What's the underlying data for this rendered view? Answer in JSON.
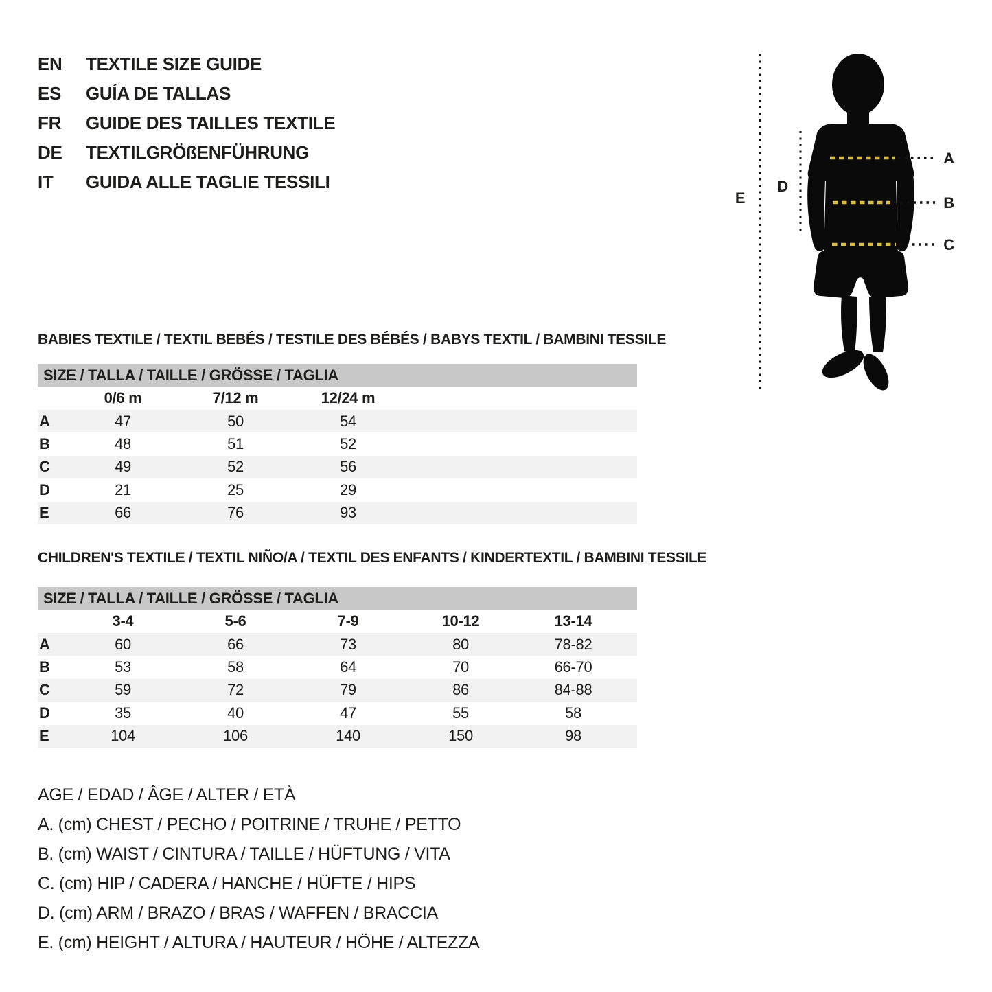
{
  "page": {
    "background": "#ffffff",
    "text_color": "#1d1d1b"
  },
  "language_guide": {
    "items": [
      {
        "code": "EN",
        "label": "TEXTILE SIZE GUIDE"
      },
      {
        "code": "ES",
        "label": "GUÍA DE TALLAS"
      },
      {
        "code": "FR",
        "label": "GUIDE DES TAILLES TEXTILE"
      },
      {
        "code": "DE",
        "label": "TEXTILGRÖßENFÜHRUNG"
      },
      {
        "code": "IT",
        "label": "GUIDA ALLE TAGLIE TESSILI"
      }
    ]
  },
  "figure": {
    "measure_labels": {
      "a": "A",
      "b": "B",
      "c": "C",
      "d": "D",
      "e": "E"
    },
    "colors": {
      "silhouette": "#0a0a0a",
      "dash_black": "#111111",
      "dash_yellow": "#d9bd4a"
    }
  },
  "babies_table": {
    "section_title": "BABIES TEXTILE / TEXTIL BEBÉS / TESTILE DES BÉBÉS / BABYS TEXTIL / BAMBINI TESSILE",
    "header_bar": "SIZE / TALLA / TAILLE / GRÖSSE / TAGLIA",
    "columns": [
      "0/6 m",
      "7/12 m",
      "12/24 m"
    ],
    "rows": [
      {
        "label": "A",
        "values": [
          "47",
          "50",
          "54"
        ]
      },
      {
        "label": "B",
        "values": [
          "48",
          "51",
          "52"
        ]
      },
      {
        "label": "C",
        "values": [
          "49",
          "52",
          "56"
        ]
      },
      {
        "label": "D",
        "values": [
          "21",
          "25",
          "29"
        ]
      },
      {
        "label": "E",
        "values": [
          "66",
          "76",
          "93"
        ]
      }
    ]
  },
  "children_table": {
    "section_title": "CHILDREN'S TEXTILE / TEXTIL NIÑO/A / TEXTIL DES ENFANTS / KINDERTEXTIL / BAMBINI TESSILE",
    "header_bar": "SIZE / TALLA / TAILLE / GRÖSSE / TAGLIA",
    "columns": [
      "3-4",
      "5-6",
      "7-9",
      "10-12",
      "13-14"
    ],
    "rows": [
      {
        "label": "A",
        "values": [
          "60",
          "66",
          "73",
          "80",
          "78-82"
        ]
      },
      {
        "label": "B",
        "values": [
          "53",
          "58",
          "64",
          "70",
          "66-70"
        ]
      },
      {
        "label": "C",
        "values": [
          "59",
          "72",
          "79",
          "86",
          "84-88"
        ]
      },
      {
        "label": "D",
        "values": [
          "35",
          "40",
          "47",
          "55",
          "58"
        ]
      },
      {
        "label": "E",
        "values": [
          "104",
          "106",
          "140",
          "150",
          "98"
        ]
      }
    ]
  },
  "legend": {
    "lines": [
      "AGE / EDAD / ÂGE / ALTER / ETÀ",
      "A. (cm) CHEST / PECHO / POITRINE / TRUHE / PETTO",
      "B. (cm) WAIST / CINTURA / TAILLE / HÜFTUNG / VITA",
      "C. (cm) HIP / CADERA / HANCHE / HÜFTE / HIPS",
      "D. (cm) ARM / BRAZO / BRAS / WAFFEN / BRACCIA",
      "E. (cm) HEIGHT / ALTURA / HAUTEUR / HÖHE / ALTEZZA"
    ]
  }
}
